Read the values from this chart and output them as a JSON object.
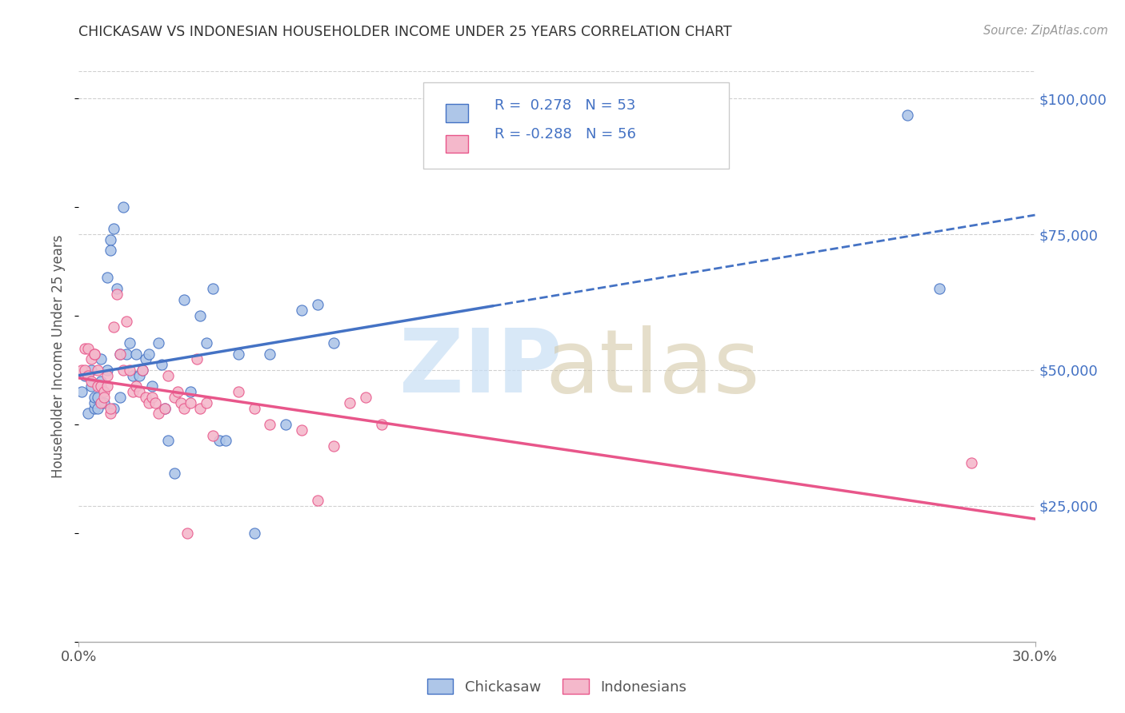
{
  "title": "CHICKASAW VS INDONESIAN HOUSEHOLDER INCOME UNDER 25 YEARS CORRELATION CHART",
  "source": "Source: ZipAtlas.com",
  "ylabel": "Householder Income Under 25 years",
  "x_min": 0.0,
  "x_max": 0.3,
  "y_min": 0,
  "y_max": 105000,
  "color_chickasaw": "#aec6e8",
  "color_indonesian": "#f4b8cb",
  "line_color_chickasaw": "#4472c4",
  "line_color_indonesian": "#e8568a",
  "watermark_zip_color": "#c8dff5",
  "watermark_atlas_color": "#d4c9a8",
  "chickasaw_x": [
    0.001,
    0.002,
    0.003,
    0.004,
    0.004,
    0.005,
    0.005,
    0.005,
    0.006,
    0.006,
    0.007,
    0.007,
    0.008,
    0.009,
    0.009,
    0.01,
    0.01,
    0.011,
    0.011,
    0.012,
    0.013,
    0.013,
    0.014,
    0.015,
    0.016,
    0.017,
    0.018,
    0.019,
    0.02,
    0.021,
    0.022,
    0.023,
    0.025,
    0.026,
    0.027,
    0.028,
    0.03,
    0.033,
    0.035,
    0.038,
    0.04,
    0.042,
    0.044,
    0.046,
    0.05,
    0.055,
    0.06,
    0.065,
    0.07,
    0.075,
    0.08,
    0.26,
    0.27
  ],
  "chickasaw_y": [
    46000,
    49000,
    42000,
    50000,
    47000,
    43000,
    44000,
    45000,
    43000,
    45000,
    52000,
    48000,
    44000,
    67000,
    50000,
    74000,
    72000,
    43000,
    76000,
    65000,
    53000,
    45000,
    80000,
    53000,
    55000,
    49000,
    53000,
    49000,
    50000,
    52000,
    53000,
    47000,
    55000,
    51000,
    43000,
    37000,
    31000,
    63000,
    46000,
    60000,
    55000,
    65000,
    37000,
    37000,
    53000,
    20000,
    53000,
    40000,
    61000,
    62000,
    55000,
    97000,
    65000
  ],
  "indonesian_x": [
    0.001,
    0.002,
    0.002,
    0.003,
    0.003,
    0.004,
    0.004,
    0.005,
    0.005,
    0.006,
    0.006,
    0.007,
    0.007,
    0.008,
    0.008,
    0.009,
    0.009,
    0.01,
    0.01,
    0.011,
    0.012,
    0.013,
    0.014,
    0.015,
    0.016,
    0.017,
    0.018,
    0.019,
    0.02,
    0.021,
    0.022,
    0.023,
    0.024,
    0.025,
    0.027,
    0.028,
    0.03,
    0.031,
    0.032,
    0.033,
    0.034,
    0.035,
    0.037,
    0.038,
    0.04,
    0.042,
    0.05,
    0.055,
    0.06,
    0.07,
    0.075,
    0.08,
    0.085,
    0.09,
    0.095,
    0.28
  ],
  "indonesian_y": [
    50000,
    54000,
    50000,
    54000,
    49000,
    48000,
    52000,
    53000,
    53000,
    47000,
    50000,
    47000,
    44000,
    46000,
    45000,
    49000,
    47000,
    42000,
    43000,
    58000,
    64000,
    53000,
    50000,
    59000,
    50000,
    46000,
    47000,
    46000,
    50000,
    45000,
    44000,
    45000,
    44000,
    42000,
    43000,
    49000,
    45000,
    46000,
    44000,
    43000,
    20000,
    44000,
    52000,
    43000,
    44000,
    38000,
    46000,
    43000,
    40000,
    39000,
    26000,
    36000,
    44000,
    45000,
    40000,
    33000
  ]
}
